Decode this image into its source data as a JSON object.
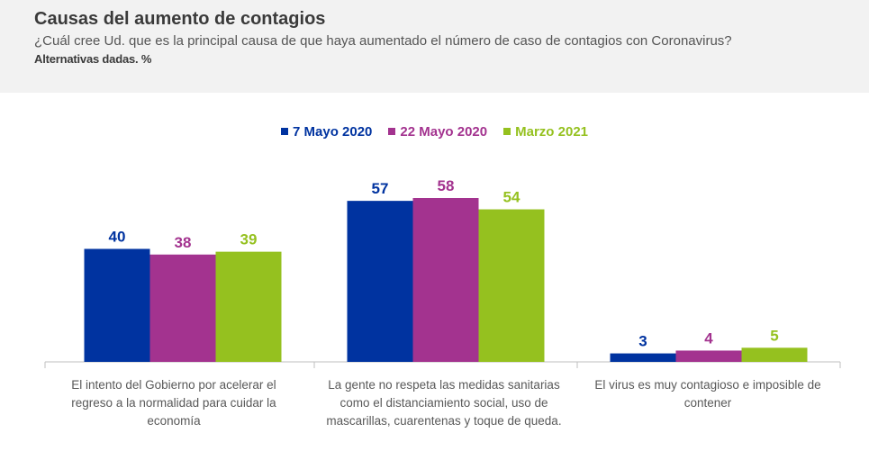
{
  "header": {
    "title": "Causas del aumento de contagios",
    "subtitle": "¿Cuál cree Ud. que es la principal causa de que haya aumentado el número de caso de contagios con Coronavirus?",
    "note": "Alternativas dadas. %"
  },
  "colors": {
    "series1": "#0033a0",
    "series2": "#a3338f",
    "series3": "#95c11f",
    "axis": "#bfbfbf"
  },
  "chart_data": {
    "type": "bar",
    "categories": [
      "El intento del Gobierno por acelerar el regreso a la normalidad para cuidar la economía",
      "La gente no respeta las medidas sanitarias como el distanciamiento social, uso de mascarillas, cuarentenas y toque de queda.",
      "El virus es muy contagioso e imposible de contener"
    ],
    "series": [
      {
        "name": "7 Mayo 2020",
        "values": [
          40,
          57,
          3
        ]
      },
      {
        "name": "22 Mayo 2020",
        "values": [
          38,
          58,
          4
        ]
      },
      {
        "name": "Marzo 2021",
        "values": [
          39,
          54,
          5
        ]
      }
    ],
    "ylim": [
      0,
      58
    ],
    "grid": false,
    "legend": "top-center"
  }
}
